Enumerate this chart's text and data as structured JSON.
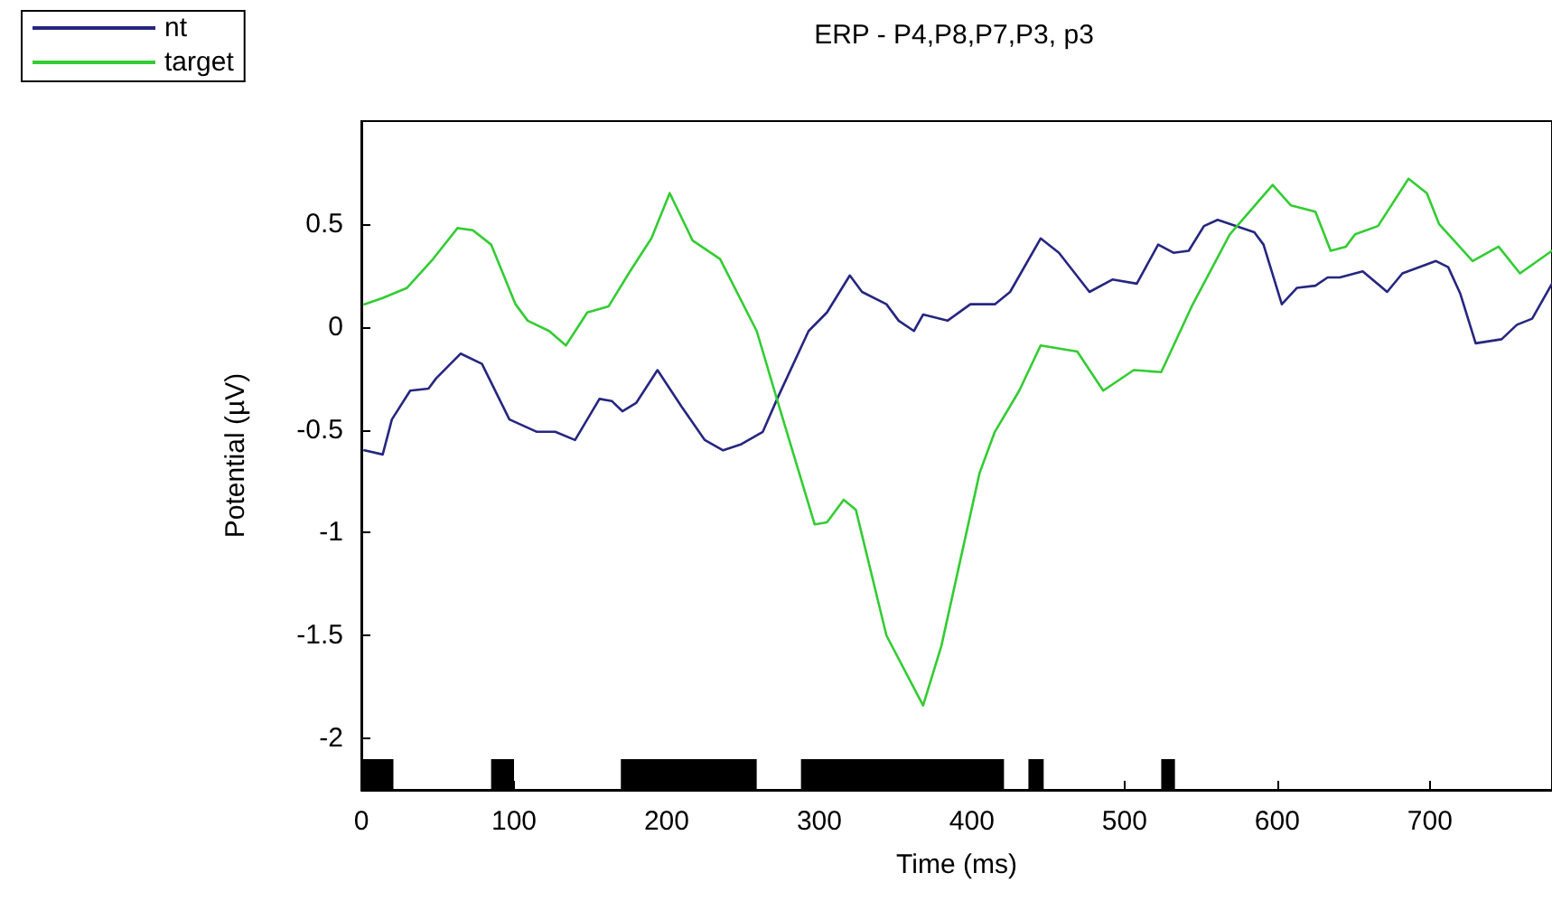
{
  "chart_data": {
    "type": "line",
    "title": "ERP - P4,P8,P7,P3, p3",
    "xlabel": "Time (ms)",
    "ylabel": "Potential (µV)",
    "xlim": [
      0,
      780
    ],
    "ylim": [
      -2.25,
      1
    ],
    "xticks": [
      0,
      100,
      200,
      300,
      400,
      500,
      600,
      700
    ],
    "yticks": [
      -2,
      -1.5,
      -1,
      -0.5,
      0,
      0.5
    ],
    "grid": false,
    "legend": "top left",
    "marker": "none",
    "line_style": "solid",
    "bands": [
      {
        "axis": "x",
        "from": 0,
        "to": 21,
        "color": "#000000"
      },
      {
        "axis": "x",
        "from": 85,
        "to": 100,
        "color": "#000000"
      },
      {
        "axis": "x",
        "from": 170,
        "to": 259,
        "color": "#000000"
      },
      {
        "axis": "x",
        "from": 288,
        "to": 421,
        "color": "#000000"
      },
      {
        "axis": "x",
        "from": 437,
        "to": 447,
        "color": "#000000"
      },
      {
        "axis": "x",
        "from": 524,
        "to": 533,
        "color": "#000000"
      }
    ],
    "series": [
      {
        "name": "nt",
        "color": "#262680",
        "x": [
          2,
          14,
          20,
          32,
          44,
          49,
          65,
          79,
          97,
          115,
          127,
          140,
          156,
          164,
          171,
          180,
          194,
          210,
          225,
          237,
          249,
          263,
          273,
          293,
          305,
          320,
          328,
          344,
          352,
          362,
          368,
          384,
          399,
          415,
          425,
          445,
          457,
          477,
          492,
          508,
          522,
          532,
          542,
          552,
          561,
          585,
          591,
          603,
          613,
          625,
          633,
          641,
          656,
          672,
          682,
          704,
          712,
          720,
          730,
          747,
          757,
          767,
          780
        ],
        "values": [
          -0.6,
          -0.62,
          -0.45,
          -0.31,
          -0.3,
          -0.25,
          -0.13,
          -0.18,
          -0.45,
          -0.51,
          -0.51,
          -0.55,
          -0.35,
          -0.36,
          -0.41,
          -0.37,
          -0.21,
          -0.39,
          -0.55,
          -0.6,
          -0.57,
          -0.51,
          -0.34,
          -0.02,
          0.07,
          0.25,
          0.17,
          0.11,
          0.03,
          -0.02,
          0.06,
          0.03,
          0.11,
          0.11,
          0.17,
          0.43,
          0.36,
          0.17,
          0.23,
          0.21,
          0.4,
          0.36,
          0.37,
          0.49,
          0.52,
          0.46,
          0.4,
          0.11,
          0.19,
          0.2,
          0.24,
          0.24,
          0.27,
          0.17,
          0.26,
          0.32,
          0.29,
          0.16,
          -0.08,
          -0.06,
          0.01,
          0.04,
          0.21
        ]
      },
      {
        "name": "target",
        "color": "#33cc33",
        "x": [
          2,
          14,
          30,
          47,
          63,
          73,
          85,
          101,
          109,
          123,
          134,
          148,
          162,
          176,
          190,
          202,
          217,
          235,
          259,
          273,
          297,
          305,
          316,
          324,
          344,
          368,
          380,
          405,
          415,
          431,
          445,
          469,
          486,
          506,
          524,
          544,
          569,
          597,
          609,
          625,
          635,
          645,
          651,
          666,
          686,
          698,
          706,
          728,
          745,
          759,
          780
        ],
        "values": [
          0.11,
          0.14,
          0.19,
          0.33,
          0.48,
          0.47,
          0.4,
          0.11,
          0.03,
          -0.02,
          -0.09,
          0.07,
          0.1,
          0.27,
          0.43,
          0.65,
          0.42,
          0.33,
          -0.02,
          -0.37,
          -0.96,
          -0.95,
          -0.84,
          -0.89,
          -1.5,
          -1.84,
          -1.55,
          -0.71,
          -0.51,
          -0.31,
          -0.09,
          -0.12,
          -0.31,
          -0.21,
          -0.22,
          0.1,
          0.45,
          0.69,
          0.59,
          0.56,
          0.37,
          0.39,
          0.45,
          0.49,
          0.72,
          0.65,
          0.5,
          0.32,
          0.39,
          0.26,
          0.37
        ]
      }
    ]
  }
}
